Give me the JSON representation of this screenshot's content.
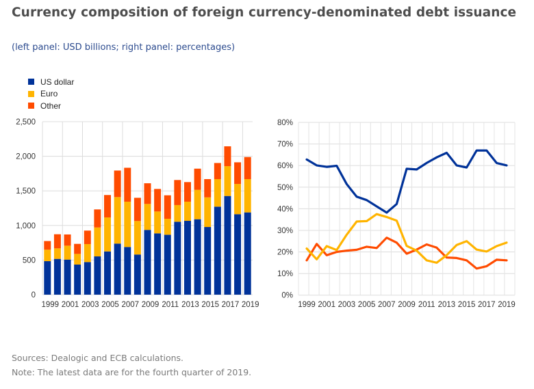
{
  "title": "Currency composition of foreign currency-denominated debt issuance",
  "subtitle": "(left panel: USD billions; right panel: percentages)",
  "legend": [
    {
      "label": "US dollar",
      "color": "#003299"
    },
    {
      "label": "Euro",
      "color": "#FFB400"
    },
    {
      "label": "Other",
      "color": "#FF4B00"
    }
  ],
  "footer": {
    "sources": "Sources: Dealogic and ECB calculations.",
    "note": "Note: The latest data are for the fourth quarter of 2019."
  },
  "chart_data": [
    {
      "type": "bar",
      "stacked": true,
      "title": "",
      "xlabel": "",
      "ylabel": "USD billions",
      "ylim": [
        0,
        2500
      ],
      "yticks": [
        "0",
        "500",
        "1,000",
        "1,500",
        "2,000",
        "2,500"
      ],
      "ytick_values": [
        0,
        500,
        1000,
        1500,
        2000,
        2500
      ],
      "grid": true,
      "legend_position": "top-left",
      "categories": [
        "1999",
        "2000",
        "2001",
        "2002",
        "2003",
        "2004",
        "2005",
        "2006",
        "2007",
        "2008",
        "2009",
        "2010",
        "2011",
        "2012",
        "2013",
        "2014",
        "2015",
        "2016",
        "2017",
        "2018",
        "2019"
      ],
      "xtick_labels": [
        "1999",
        "2001",
        "2003",
        "2005",
        "2007",
        "2009",
        "2011",
        "2013",
        "2015",
        "2017",
        "2019"
      ],
      "series": [
        {
          "name": "US dollar",
          "color": "#003299",
          "values": [
            484,
            517,
            507,
            435,
            471,
            553,
            625,
            738,
            689,
            580,
            936,
            886,
            866,
            1054,
            1067,
            1090,
            978,
            1272,
            1426,
            1163,
            1189
          ]
        },
        {
          "name": "Euro",
          "color": "#FFB400",
          "values": [
            166,
            152,
            201,
            154,
            260,
            418,
            491,
            672,
            655,
            484,
            375,
            316,
            231,
            241,
            277,
            425,
            428,
            398,
            431,
            437,
            481
          ]
        },
        {
          "name": "Other",
          "color": "#FF4B00",
          "values": [
            125,
            204,
            162,
            145,
            195,
            261,
            324,
            384,
            490,
            336,
            299,
            326,
            339,
            362,
            283,
            306,
            264,
            233,
            287,
            313,
            319
          ]
        }
      ]
    },
    {
      "type": "line",
      "title": "",
      "xlabel": "",
      "ylabel": "percentages",
      "ylim": [
        0,
        80
      ],
      "yticks": [
        "0%",
        "10%",
        "20%",
        "30%",
        "40%",
        "50%",
        "60%",
        "70%",
        "80%"
      ],
      "ytick_values": [
        0,
        10,
        20,
        30,
        40,
        50,
        60,
        70,
        80
      ],
      "grid": true,
      "x": [
        "1999",
        "2000",
        "2001",
        "2002",
        "2003",
        "2004",
        "2005",
        "2006",
        "2007",
        "2008",
        "2009",
        "2010",
        "2011",
        "2012",
        "2013",
        "2014",
        "2015",
        "2016",
        "2017",
        "2018",
        "2019"
      ],
      "xtick_labels": [
        "1999",
        "2001",
        "2003",
        "2005",
        "2007",
        "2009",
        "2011",
        "2013",
        "2015",
        "2017",
        "2019"
      ],
      "series": [
        {
          "name": "US dollar",
          "color": "#003299",
          "values": [
            62.8,
            60.1,
            59.4,
            59.9,
            51.4,
            45.6,
            44.0,
            41.1,
            38.2,
            42.2,
            58.5,
            58.2,
            61.2,
            63.8,
            65.9,
            60.1,
            59.1,
            67.0,
            67.0,
            61.2,
            60.1
          ]
        },
        {
          "name": "Euro",
          "color": "#FFB400",
          "values": [
            21.6,
            16.6,
            22.7,
            20.9,
            28.0,
            34.1,
            34.3,
            37.5,
            36.2,
            34.5,
            22.8,
            20.6,
            16.1,
            15.0,
            18.5,
            23.2,
            25.0,
            21.1,
            20.2,
            22.7,
            24.3
          ]
        },
        {
          "name": "Other",
          "color": "#FF4B00",
          "values": [
            16.1,
            23.7,
            18.5,
            20.0,
            20.6,
            21.0,
            22.4,
            21.8,
            26.6,
            24.3,
            19.2,
            21.1,
            23.5,
            22.0,
            17.4,
            17.2,
            16.1,
            12.3,
            13.4,
            16.4,
            16.1
          ]
        }
      ]
    }
  ]
}
